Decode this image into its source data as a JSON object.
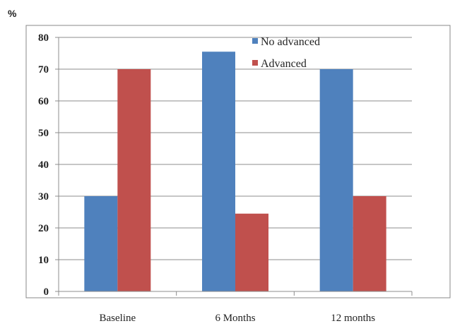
{
  "chart_data": {
    "type": "bar",
    "unit_label": "%",
    "categories": [
      "Baseline",
      "6 Months",
      "12 months"
    ],
    "series": [
      {
        "name": "No advanced",
        "color": "#4f81bd",
        "values": [
          30,
          75.5,
          70
        ]
      },
      {
        "name": "Advanced",
        "color": "#c0504d",
        "values": [
          70,
          24.5,
          30
        ]
      }
    ],
    "ylim": [
      0,
      80
    ],
    "yticks": [
      0,
      10,
      20,
      30,
      40,
      50,
      60,
      70,
      80
    ],
    "grid": true,
    "legend_position": "top-right"
  }
}
